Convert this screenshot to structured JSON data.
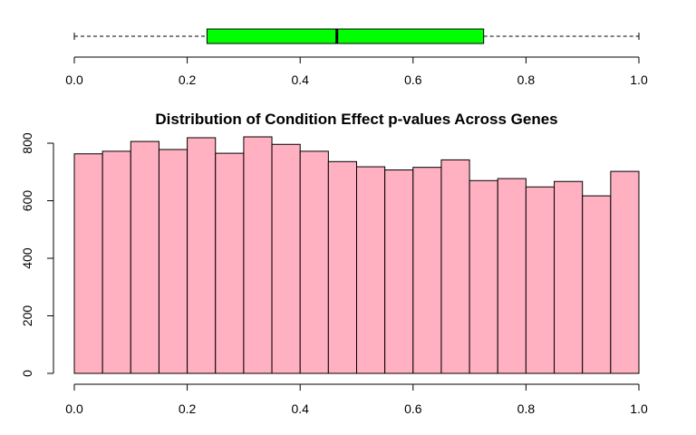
{
  "chart_data": [
    {
      "type": "boxplot",
      "orientation": "horizontal",
      "title": "",
      "xlabel": "",
      "ylabel": "",
      "xlim": [
        0,
        1
      ],
      "x_ticks": [
        "0.0",
        "0.2",
        "0.4",
        "0.6",
        "0.8",
        "1.0"
      ],
      "whisker_low": 0.0,
      "q1": 0.235,
      "median": 0.465,
      "q3": 0.725,
      "whisker_high": 1.0,
      "box_color": "#00ff00"
    },
    {
      "type": "bar",
      "subtype": "histogram",
      "title": "Distribution of Condition Effect p-values Across Genes",
      "xlabel": "",
      "ylabel": "",
      "xlim": [
        0,
        1
      ],
      "ylim": [
        0,
        800
      ],
      "x_ticks": [
        "0.0",
        "0.2",
        "0.4",
        "0.6",
        "0.8",
        "1.0"
      ],
      "y_ticks": [
        "0",
        "200",
        "400",
        "600",
        "800"
      ],
      "bin_width": 0.05,
      "bin_starts": [
        0.0,
        0.05,
        0.1,
        0.15,
        0.2,
        0.25,
        0.3,
        0.35,
        0.4,
        0.45,
        0.5,
        0.55,
        0.6,
        0.65,
        0.7,
        0.75,
        0.8,
        0.85,
        0.9,
        0.95
      ],
      "values": [
        763,
        772,
        806,
        778,
        819,
        765,
        822,
        796,
        772,
        736,
        718,
        707,
        716,
        742,
        670,
        677,
        648,
        667,
        617,
        702
      ],
      "bar_color": "#ffb0c1"
    }
  ]
}
